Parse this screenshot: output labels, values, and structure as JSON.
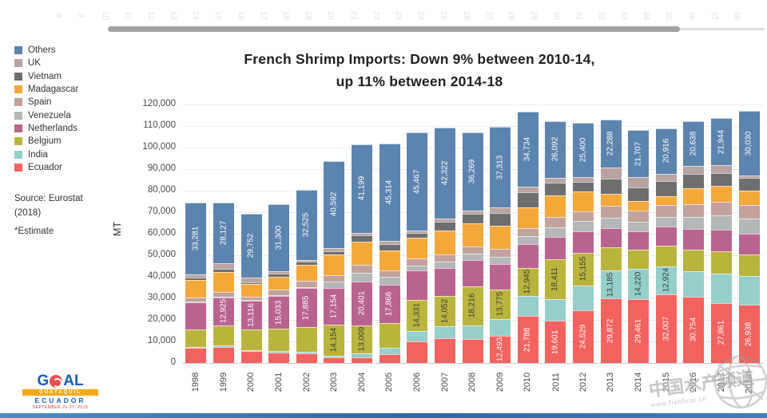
{
  "page": {
    "slide_numbers": [
      "8",
      "9",
      "10",
      "11",
      "12",
      "13",
      "14",
      "15",
      "16",
      "17",
      "18",
      "19",
      "20",
      "21",
      "22",
      "23",
      "24",
      "25",
      "26",
      "27",
      "28",
      "29",
      "30",
      "31",
      "32",
      "33",
      "34",
      "35",
      "36",
      "37",
      "38"
    ],
    "watermark": {
      "text": "中国水产频道",
      "url": "www.fishfirst.cn"
    },
    "logo": {
      "word_g": "G",
      "word_al": "AL",
      "city": "GUAYAQUIL",
      "country": "ECUADOR",
      "date": "SEPTEMBER 25-27, 2018"
    }
  },
  "chart_data": {
    "type": "bar",
    "stacked": true,
    "title_line1": "French Shrimp Imports: Down 9% between 2010-14,",
    "title_line2": "up 11% between 2014-18",
    "source_line1": "Source: Eurostat",
    "source_line2": "(2018)",
    "estimate_note": "*Estimate",
    "ylabel": "MT",
    "ylim": [
      0,
      120000
    ],
    "ytick_step": 10000,
    "ytick_labels": [
      "0",
      "10,000",
      "20,000",
      "30,000",
      "40,000",
      "50,000",
      "60,000",
      "70,000",
      "80,000",
      "90,000",
      "100,000",
      "110,000",
      "120,000"
    ],
    "grid": true,
    "legend_position": "top-left",
    "legend_order": [
      "Others",
      "UK",
      "Vietnam",
      "Madagascar",
      "Spain",
      "Venezuela",
      "Netherlands",
      "Belgium",
      "India",
      "Ecuador"
    ],
    "categories": [
      "1998",
      "1999",
      "2000",
      "2001",
      "2002",
      "2003",
      "2004",
      "2005",
      "2006",
      "2007",
      "2008",
      "2009",
      "2010",
      "2011",
      "2012",
      "2013",
      "2014",
      "2015",
      "2016",
      "2017",
      "2018*"
    ],
    "stack_order_note": "series listed bottom-to-top; values with label_flags=true are printed on the chart, others are visual estimates",
    "series": [
      {
        "name": "Ecuador",
        "color": "#f2625e",
        "label_color": "#ffffff",
        "values": [
          7000,
          7500,
          5500,
          5000,
          4500,
          2500,
          2500,
          4000,
          10000,
          11500,
          11000,
          12493,
          21788,
          19601,
          24529,
          29872,
          29461,
          32007,
          30754,
          27861,
          26938
        ],
        "label_flags": [
          false,
          false,
          false,
          false,
          false,
          false,
          false,
          false,
          false,
          false,
          false,
          true,
          true,
          true,
          true,
          true,
          true,
          true,
          true,
          true,
          true
        ]
      },
      {
        "name": "India",
        "color": "#94cfc9",
        "label_color": "#3a3a3a",
        "values": [
          400,
          500,
          400,
          500,
          800,
          1000,
          2000,
          3000,
          5000,
          5500,
          6500,
          8000,
          9500,
          10000,
          11500,
          13185,
          14220,
          12924,
          12000,
          13500,
          13500
        ],
        "label_flags": [
          false,
          false,
          false,
          false,
          false,
          false,
          false,
          false,
          false,
          false,
          false,
          false,
          false,
          false,
          false,
          true,
          true,
          true,
          false,
          false,
          false
        ]
      },
      {
        "name": "Belgium",
        "color": "#bab43c",
        "label_color": "#3a3a3a",
        "values": [
          8000,
          9500,
          9800,
          10500,
          11500,
          14154,
          13009,
          11500,
          14331,
          14052,
          18216,
          13775,
          12945,
          18411,
          15155,
          10500,
          9000,
          9500,
          10000,
          10500,
          10000
        ],
        "label_flags": [
          false,
          false,
          false,
          false,
          false,
          true,
          true,
          false,
          true,
          true,
          true,
          true,
          true,
          true,
          true,
          false,
          false,
          false,
          false,
          false,
          false
        ]
      },
      {
        "name": "Netherlands",
        "color": "#b96390",
        "label_color": "#ffffff",
        "values": [
          12800,
          12925,
          13116,
          15033,
          17885,
          17154,
          20401,
          17866,
          13500,
          13000,
          12000,
          11500,
          11000,
          10500,
          10000,
          9000,
          8500,
          9000,
          9500,
          10000,
          9500
        ],
        "label_flags": [
          false,
          true,
          true,
          true,
          true,
          true,
          true,
          true,
          false,
          false,
          false,
          false,
          false,
          false,
          false,
          false,
          false,
          false,
          false,
          false,
          false
        ]
      },
      {
        "name": "Venezuela",
        "color": "#b4b7b7",
        "label_color": "#3a3a3a",
        "values": [
          300,
          400,
          300,
          400,
          500,
          3000,
          4000,
          3500,
          2500,
          3000,
          3000,
          3500,
          3500,
          4500,
          4800,
          5000,
          4500,
          4500,
          5500,
          6500,
          7000
        ],
        "label_flags": [
          false,
          false,
          false,
          false,
          false,
          false,
          false,
          false,
          false,
          false,
          false,
          false,
          false,
          false,
          false,
          false,
          false,
          false,
          false,
          false,
          false
        ]
      },
      {
        "name": "Spain",
        "color": "#c2a29b",
        "label_color": "#3a3a3a",
        "values": [
          2000,
          2300,
          1500,
          2500,
          3000,
          3000,
          3500,
          3000,
          3200,
          3500,
          3500,
          3800,
          4000,
          4600,
          4500,
          5500,
          5000,
          5500,
          6000,
          6500,
          6500
        ],
        "label_flags": [
          false,
          false,
          false,
          false,
          false,
          false,
          false,
          false,
          false,
          false,
          false,
          false,
          false,
          false,
          false,
          false,
          false,
          false,
          false,
          false,
          false
        ]
      },
      {
        "name": "Madagascar",
        "color": "#f5a83a",
        "label_color": "#3a3a3a",
        "values": [
          8000,
          9000,
          6000,
          6000,
          7500,
          9500,
          11000,
          9500,
          9500,
          11000,
          10500,
          10500,
          9500,
          10000,
          9000,
          5500,
          4500,
          4000,
          7500,
          7500,
          6500
        ],
        "label_flags": [
          false,
          false,
          false,
          false,
          false,
          false,
          false,
          false,
          false,
          false,
          false,
          false,
          false,
          false,
          false,
          false,
          false,
          false,
          false,
          false,
          false
        ]
      },
      {
        "name": "Vietnam",
        "color": "#6e6e6e",
        "label_color": "#ffffff",
        "values": [
          1000,
          1700,
          1000,
          1500,
          1200,
          1500,
          3000,
          2800,
          2500,
          3900,
          4500,
          6000,
          7200,
          6000,
          4500,
          7000,
          6500,
          7000,
          6500,
          5900,
          6000
        ],
        "label_flags": [
          false,
          false,
          false,
          false,
          false,
          false,
          false,
          false,
          false,
          false,
          false,
          false,
          false,
          false,
          false,
          false,
          false,
          false,
          false,
          false,
          false
        ]
      },
      {
        "name": "UK",
        "color": "#b9a3a3",
        "label_color": "#3a3a3a",
        "values": [
          1800,
          2400,
          1900,
          1000,
          1000,
          1500,
          1000,
          1400,
          1000,
          1500,
          1500,
          2700,
          2500,
          2500,
          2200,
          5200,
          4700,
          3500,
          3800,
          3500,
          1000
        ],
        "label_flags": [
          false,
          false,
          false,
          false,
          false,
          false,
          false,
          false,
          false,
          false,
          false,
          false,
          false,
          false,
          false,
          false,
          false,
          false,
          false,
          false,
          false
        ]
      },
      {
        "name": "Others",
        "color": "#5b84ae",
        "label_color": "#ffffff",
        "values": [
          33281,
          28127,
          29752,
          31300,
          32525,
          40592,
          41199,
          45314,
          45467,
          42322,
          36269,
          37313,
          34734,
          26092,
          25400,
          22288,
          21707,
          20916,
          20638,
          21944,
          30030
        ],
        "label_flags": [
          true,
          true,
          true,
          true,
          true,
          true,
          true,
          true,
          true,
          true,
          true,
          true,
          true,
          true,
          true,
          true,
          true,
          true,
          true,
          true,
          true
        ]
      }
    ]
  }
}
